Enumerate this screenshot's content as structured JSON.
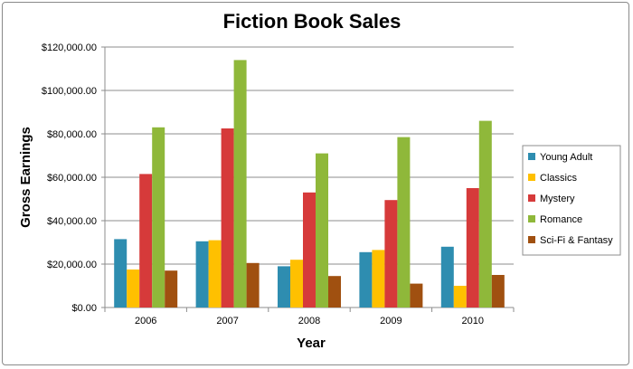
{
  "chart_data": {
    "type": "bar",
    "title": "Fiction Book Sales",
    "xlabel": "Year",
    "ylabel": "Gross Earnings",
    "categories": [
      "2006",
      "2007",
      "2008",
      "2009",
      "2010"
    ],
    "ylim": [
      0,
      120000
    ],
    "yticks": [
      0,
      20000,
      40000,
      60000,
      80000,
      100000,
      120000
    ],
    "ytick_labels": [
      "$0.00",
      "$20,000.00",
      "$40,000.00",
      "$60,000.00",
      "$80,000.00",
      "$100,000.00",
      "$120,000.00"
    ],
    "grid": true,
    "legend_position": "right",
    "series": [
      {
        "name": "Young Adult",
        "color": "#2e8db0",
        "values": [
          31500,
          30500,
          19000,
          25500,
          28000
        ]
      },
      {
        "name": "Classics",
        "color": "#ffc000",
        "values": [
          17500,
          31000,
          22000,
          26500,
          10000
        ]
      },
      {
        "name": "Mystery",
        "color": "#d63a3a",
        "values": [
          61500,
          82500,
          53000,
          49500,
          55000
        ]
      },
      {
        "name": "Romance",
        "color": "#8fb83a",
        "values": [
          83000,
          114000,
          71000,
          78500,
          86000
        ]
      },
      {
        "name": "Sci-Fi & Fantasy",
        "color": "#a05010",
        "values": [
          17000,
          20500,
          14500,
          11000,
          15000
        ]
      }
    ]
  }
}
